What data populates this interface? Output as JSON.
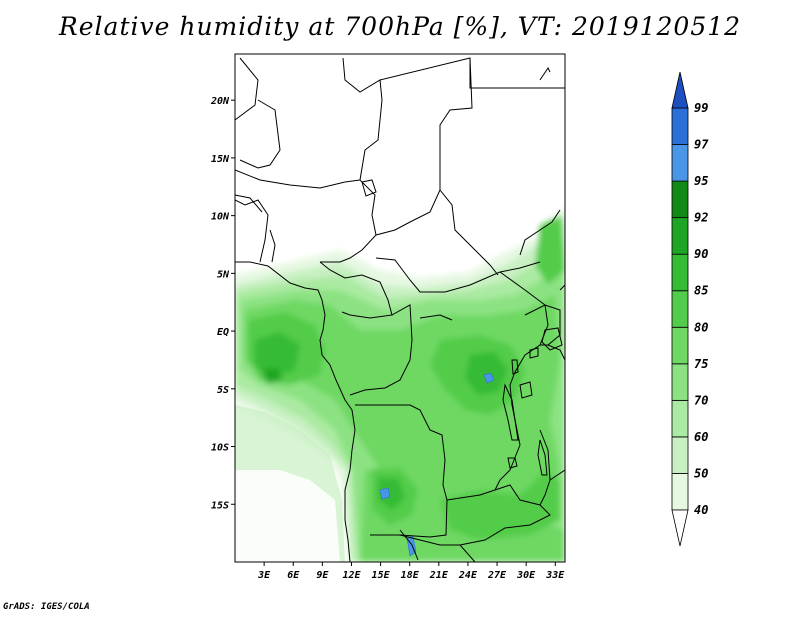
{
  "title": "Relative humidity at 700hPa [%], VT: 2019120512",
  "footer": "GrADS: IGES/COLA",
  "map": {
    "lon_range": [
      0,
      34
    ],
    "lat_range": [
      -20,
      24
    ],
    "lat_ticks": [
      {
        "value": 20,
        "label": "20N"
      },
      {
        "value": 15,
        "label": "15N"
      },
      {
        "value": 10,
        "label": "10N"
      },
      {
        "value": 5,
        "label": "5N"
      },
      {
        "value": 0,
        "label": "EQ"
      },
      {
        "value": -5,
        "label": "5S"
      },
      {
        "value": -10,
        "label": "10S"
      },
      {
        "value": -15,
        "label": "15S"
      }
    ],
    "lon_ticks": [
      {
        "value": 3,
        "label": "3E"
      },
      {
        "value": 6,
        "label": "6E"
      },
      {
        "value": 9,
        "label": "9E"
      },
      {
        "value": 12,
        "label": "12E"
      },
      {
        "value": 15,
        "label": "15E"
      },
      {
        "value": 18,
        "label": "18E"
      },
      {
        "value": 21,
        "label": "21E"
      },
      {
        "value": 24,
        "label": "24E"
      },
      {
        "value": 27,
        "label": "27E"
      },
      {
        "value": 30,
        "label": "30E"
      },
      {
        "value": 33,
        "label": "33E"
      }
    ]
  },
  "colorbar": {
    "levels": [
      {
        "label": "40",
        "color": "#ffffff"
      },
      {
        "label": "50",
        "color": "#e6f8e2"
      },
      {
        "label": "60",
        "color": "#c8f0c2"
      },
      {
        "label": "70",
        "color": "#aaeaa2"
      },
      {
        "label": "75",
        "color": "#8ce282"
      },
      {
        "label": "80",
        "color": "#6ed864"
      },
      {
        "label": "85",
        "color": "#52cc4a"
      },
      {
        "label": "90",
        "color": "#36bb34"
      },
      {
        "label": "92",
        "color": "#1ea524"
      },
      {
        "label": "95",
        "color": "#118a18"
      },
      {
        "label": "97",
        "color": "#4a96e6"
      },
      {
        "label": "99",
        "color": "#2a70d8"
      }
    ],
    "top_color": "#1e4fc0",
    "bottom_color": "#ffffff"
  }
}
